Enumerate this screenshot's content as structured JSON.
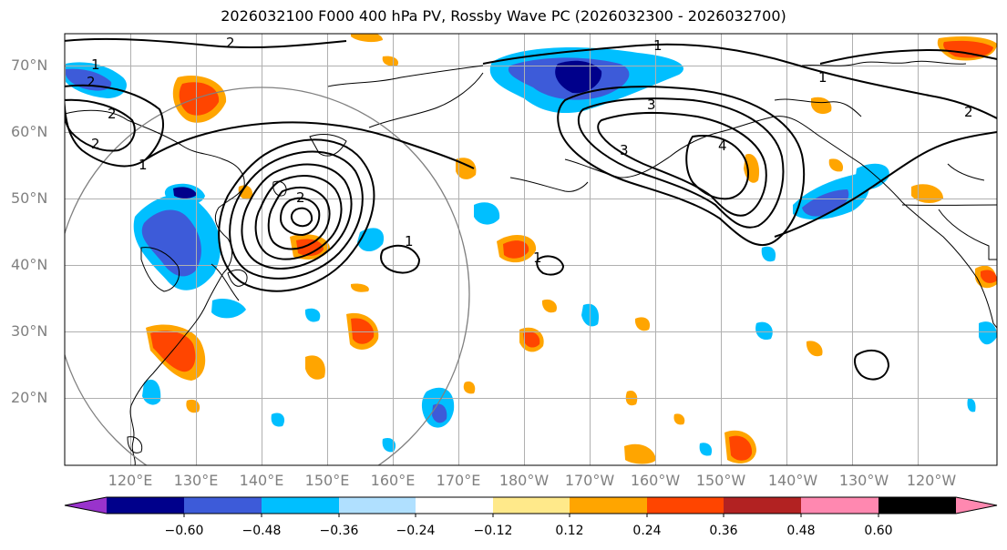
{
  "title": "2026032100 F000 400 hPa PV, Rossby Wave PC (2026032300 - 2026032700)",
  "lat_labels": [
    "70°N",
    "60°N",
    "50°N",
    "40°N",
    "30°N",
    "20°N"
  ],
  "lon_labels": [
    "120°E",
    "130°E",
    "140°E",
    "150°E",
    "160°E",
    "170°E",
    "180°W",
    "170°W",
    "160°W",
    "150°W",
    "140°W",
    "130°W",
    "120°W"
  ],
  "colorbar": {
    "ticks": [
      "−0.60",
      "−0.48",
      "−0.36",
      "−0.24",
      "−0.12",
      "0.12",
      "0.24",
      "0.36",
      "0.48",
      "0.60"
    ],
    "colors": [
      "#9933cc",
      "#00008b",
      "#3d5bd9",
      "#00bfff",
      "#b0e0ff",
      "#ffffff",
      "#ffe98a",
      "#ffa500",
      "#ff4500",
      "#b22222",
      "#ff88b0"
    ]
  },
  "contour_labels": [
    "1",
    "1",
    "2",
    "2",
    "2",
    "1",
    "1",
    "1",
    "2",
    "2",
    "3",
    "3",
    "4",
    "1",
    "2"
  ]
}
